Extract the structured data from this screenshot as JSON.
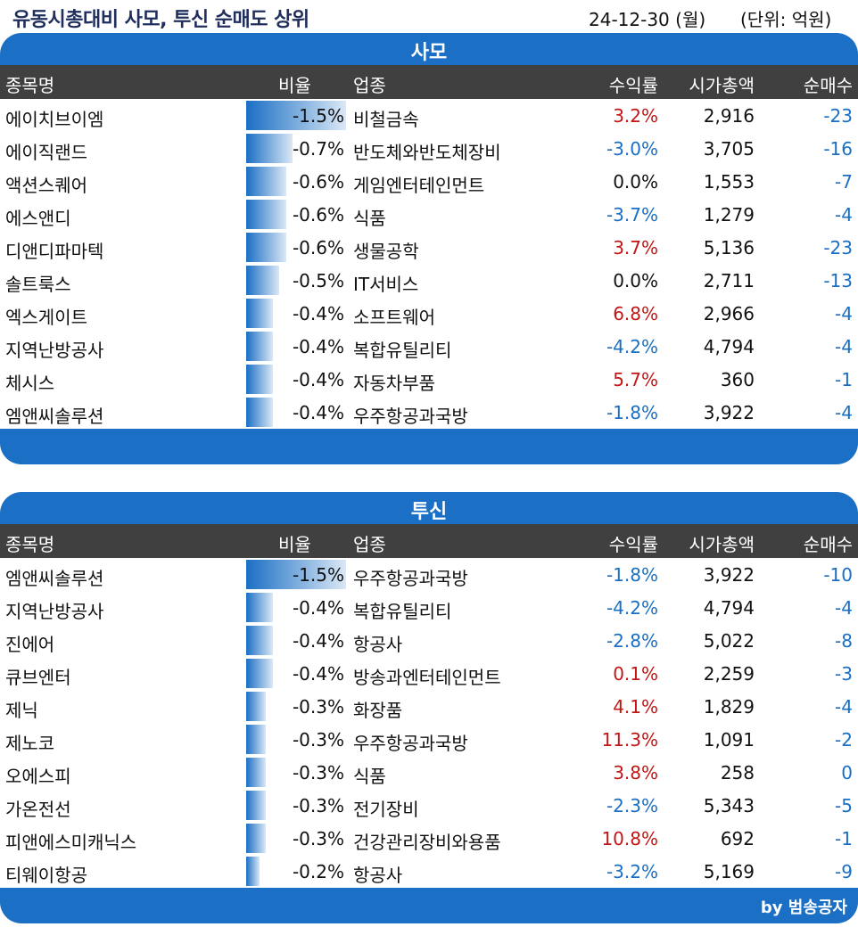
{
  "header": {
    "title": "유동시총대비 사모, 투신 순매도 상위",
    "date": "24-12-30 (월)",
    "unit": "(단위: 억원)"
  },
  "columns": {
    "name": "종목명",
    "ratio": "비율",
    "sector": "업종",
    "return": "수익률",
    "cap": "시가총액",
    "net": "순매수"
  },
  "sections": [
    {
      "label": "사모",
      "rows": [
        {
          "name": "에이치브이엠",
          "ratio": "-1.5%",
          "ratio_value": 1.5,
          "sector": "비철금속",
          "return": "3.2%",
          "cap": "2,916",
          "net": "-23"
        },
        {
          "name": "에이직랜드",
          "ratio": "-0.7%",
          "ratio_value": 0.7,
          "sector": "반도체와반도체장비",
          "return": "-3.0%",
          "cap": "3,705",
          "net": "-16"
        },
        {
          "name": "액션스퀘어",
          "ratio": "-0.6%",
          "ratio_value": 0.6,
          "sector": "게임엔터테인먼트",
          "return": "0.0%",
          "cap": "1,553",
          "net": "-7"
        },
        {
          "name": "에스앤디",
          "ratio": "-0.6%",
          "ratio_value": 0.6,
          "sector": "식품",
          "return": "-3.7%",
          "cap": "1,279",
          "net": "-4"
        },
        {
          "name": "디앤디파마텍",
          "ratio": "-0.6%",
          "ratio_value": 0.6,
          "sector": "생물공학",
          "return": "3.7%",
          "cap": "5,136",
          "net": "-23"
        },
        {
          "name": "솔트룩스",
          "ratio": "-0.5%",
          "ratio_value": 0.5,
          "sector": "IT서비스",
          "return": "0.0%",
          "cap": "2,711",
          "net": "-13"
        },
        {
          "name": "엑스게이트",
          "ratio": "-0.4%",
          "ratio_value": 0.4,
          "sector": "소프트웨어",
          "return": "6.8%",
          "cap": "2,966",
          "net": "-4"
        },
        {
          "name": "지역난방공사",
          "ratio": "-0.4%",
          "ratio_value": 0.4,
          "sector": "복합유틸리티",
          "return": "-4.2%",
          "cap": "4,794",
          "net": "-4"
        },
        {
          "name": "체시스",
          "ratio": "-0.4%",
          "ratio_value": 0.4,
          "sector": "자동차부품",
          "return": "5.7%",
          "cap": "360",
          "net": "-1"
        },
        {
          "name": "엠앤씨솔루션",
          "ratio": "-0.4%",
          "ratio_value": 0.4,
          "sector": "우주항공과국방",
          "return": "-1.8%",
          "cap": "3,922",
          "net": "-4"
        }
      ]
    },
    {
      "label": "투신",
      "rows": [
        {
          "name": "엠앤씨솔루션",
          "ratio": "-1.5%",
          "ratio_value": 1.5,
          "sector": "우주항공과국방",
          "return": "-1.8%",
          "cap": "3,922",
          "net": "-10"
        },
        {
          "name": "지역난방공사",
          "ratio": "-0.4%",
          "ratio_value": 0.4,
          "sector": "복합유틸리티",
          "return": "-4.2%",
          "cap": "4,794",
          "net": "-4"
        },
        {
          "name": "진에어",
          "ratio": "-0.4%",
          "ratio_value": 0.4,
          "sector": "항공사",
          "return": "-2.8%",
          "cap": "5,022",
          "net": "-8"
        },
        {
          "name": "큐브엔터",
          "ratio": "-0.4%",
          "ratio_value": 0.4,
          "sector": "방송과엔터테인먼트",
          "return": "0.1%",
          "cap": "2,259",
          "net": "-3"
        },
        {
          "name": "제닉",
          "ratio": "-0.3%",
          "ratio_value": 0.3,
          "sector": "화장품",
          "return": "4.1%",
          "cap": "1,829",
          "net": "-4"
        },
        {
          "name": "제노코",
          "ratio": "-0.3%",
          "ratio_value": 0.3,
          "sector": "우주항공과국방",
          "return": "11.3%",
          "cap": "1,091",
          "net": "-2"
        },
        {
          "name": "오에스피",
          "ratio": "-0.3%",
          "ratio_value": 0.3,
          "sector": "식품",
          "return": "3.8%",
          "cap": "258",
          "net": "0"
        },
        {
          "name": "가온전선",
          "ratio": "-0.3%",
          "ratio_value": 0.3,
          "sector": "전기장비",
          "return": "-2.3%",
          "cap": "5,343",
          "net": "-5"
        },
        {
          "name": "피앤에스미캐닉스",
          "ratio": "-0.3%",
          "ratio_value": 0.3,
          "sector": "건강관리장비와용품",
          "return": "10.8%",
          "cap": "692",
          "net": "-1"
        },
        {
          "name": "티웨이항공",
          "ratio": "-0.2%",
          "ratio_value": 0.2,
          "sector": "항공사",
          "return": "-3.2%",
          "cap": "5,169",
          "net": "-9"
        }
      ]
    }
  ],
  "footer": {
    "credit": "by 범송공자"
  },
  "colors": {
    "accent": "#1b6fc4",
    "header_dark": "#404040",
    "positive": "#c21515",
    "negative": "#1a6fc4"
  }
}
